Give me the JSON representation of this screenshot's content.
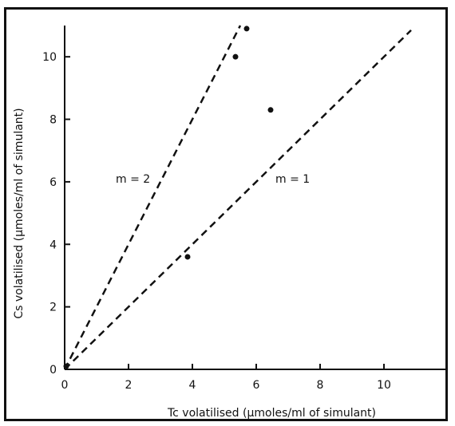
{
  "chart_data": {
    "type": "scatter",
    "title": "",
    "xlabel": "Tc volatilised (μmoles/ml of simulant)",
    "ylabel": "Cs volatilised (μmoles/ml of simulant)",
    "xlim": [
      0,
      12
    ],
    "ylim": [
      0,
      11
    ],
    "x_ticks": [
      0,
      2,
      4,
      6,
      8,
      10
    ],
    "y_ticks": [
      0,
      2,
      4,
      6,
      8,
      10
    ],
    "grid": false,
    "points": [
      {
        "x": 0.05,
        "y": 0.1
      },
      {
        "x": 3.85,
        "y": 3.6
      },
      {
        "x": 5.35,
        "y": 10.0
      },
      {
        "x": 5.7,
        "y": 10.9
      },
      {
        "x": 6.45,
        "y": 8.3
      }
    ],
    "reference_lines": [
      {
        "label": "m = 2",
        "slope": 2,
        "x_end": 5.5,
        "style": "dashed"
      },
      {
        "label": "m = 1",
        "slope": 1,
        "x_end": 10.85,
        "style": "dashed"
      }
    ],
    "annotations": [
      {
        "text": "m = 2",
        "x": 1.6,
        "y": 6.1
      },
      {
        "text": "m = 1",
        "x": 6.6,
        "y": 6.1
      }
    ]
  }
}
